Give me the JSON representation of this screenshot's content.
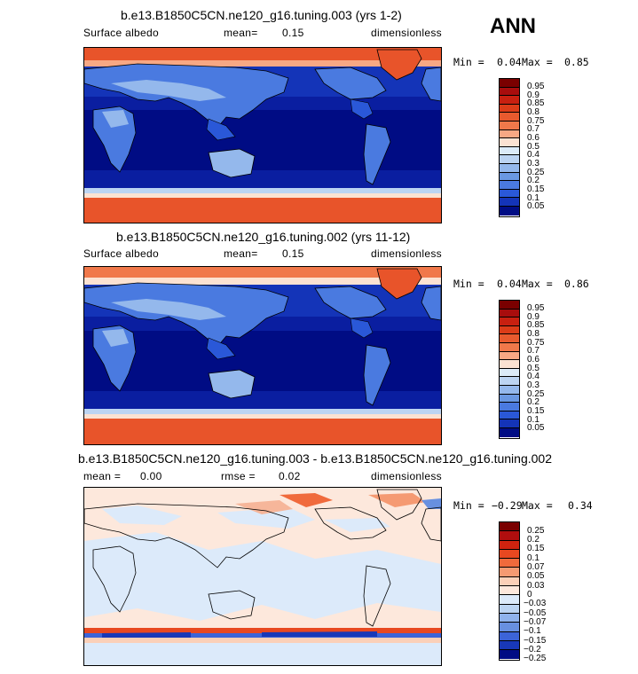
{
  "season_label": "ANN",
  "panels": [
    {
      "title": "b.e13.B1850C5CN.ne120_g16.tuning.003 (yrs 1-2)",
      "left_label": "Surface albedo",
      "mean_label": "mean=",
      "mean_value": "0.15",
      "units": "dimensionless",
      "min_label": "Min =",
      "min_value": "0.04",
      "max_label": "Max =",
      "max_value": "0.85",
      "colorbar_ticks": [
        "0.95",
        "0.9",
        "0.85",
        "0.8",
        "0.75",
        "0.7",
        "0.6",
        "0.5",
        "0.4",
        "0.3",
        "0.25",
        "0.2",
        "0.15",
        "0.1",
        "0.05"
      ]
    },
    {
      "title": "b.e13.B1850C5CN.ne120_g16.tuning.002 (yrs 11-12)",
      "left_label": "Surface albedo",
      "mean_label": "mean=",
      "mean_value": "0.15",
      "units": "dimensionless",
      "min_label": "Min =",
      "min_value": "0.04",
      "max_label": "Max =",
      "max_value": "0.86",
      "colorbar_ticks": [
        "0.95",
        "0.9",
        "0.85",
        "0.8",
        "0.75",
        "0.7",
        "0.6",
        "0.5",
        "0.4",
        "0.3",
        "0.25",
        "0.2",
        "0.15",
        "0.1",
        "0.05"
      ]
    },
    {
      "title": "b.e13.B1850C5CN.ne120_g16.tuning.003 - b.e13.B1850C5CN.ne120_g16.tuning.002",
      "mean_label": "mean =",
      "mean_value": "0.00",
      "rmse_label": "rmse =",
      "rmse_value": "0.02",
      "units": "dimensionless",
      "min_label": "Min =",
      "min_value": "−0.29",
      "max_label": "Max =",
      "max_value": "0.34",
      "colorbar_ticks": [
        "0.25",
        "0.2",
        "0.15",
        "0.1",
        "0.07",
        "0.05",
        "0.03",
        "0",
        "−0.03",
        "−0.05",
        "−0.07",
        "−0.1",
        "−0.15",
        "−0.2",
        "−0.25"
      ]
    }
  ],
  "colors": {
    "abs_scale": [
      "#7a0000",
      "#a80d0d",
      "#c82010",
      "#dc3c18",
      "#e85a2e",
      "#f0784a",
      "#f7a884",
      "#fbe2d2",
      "#dcebf8",
      "#bcd4f2",
      "#94b8ec",
      "#6a98e2",
      "#4a7ae0",
      "#2a58d8",
      "#1434b8",
      "#000c84"
    ],
    "diff_scale": [
      "#7a0000",
      "#b00e0e",
      "#d0230f",
      "#e84820",
      "#f06a3c",
      "#f59a72",
      "#fbd0b8",
      "#fde8dc",
      "#dceafa",
      "#bcd4f2",
      "#8fb2ec",
      "#6890e0",
      "#3c64d8",
      "#1838b8",
      "#000c84"
    ],
    "land_outline": "#000000",
    "ocean_deep": "#000c84",
    "ocean_mid": "#1434b8",
    "ice": "#e8542a"
  }
}
